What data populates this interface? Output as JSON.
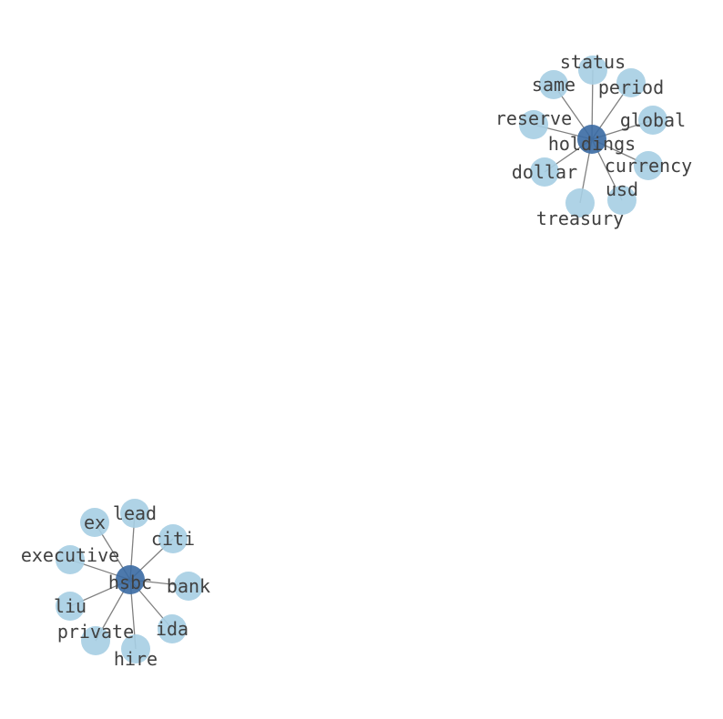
{
  "colors": {
    "leaf_node": "#a6cee3",
    "hub_node": "#3a6aa3",
    "edge": "#808080",
    "label": "#404040"
  },
  "graphs": [
    {
      "hub": "holdings",
      "leaves": [
        "status",
        "same",
        "period",
        "global",
        "reserve",
        "dollar",
        "currency",
        "treasury",
        "usd"
      ]
    },
    {
      "hub": "hsbc",
      "leaves": [
        "lead",
        "ex",
        "citi",
        "executive",
        "bank",
        "liu",
        "ida",
        "private",
        "hire"
      ]
    }
  ]
}
